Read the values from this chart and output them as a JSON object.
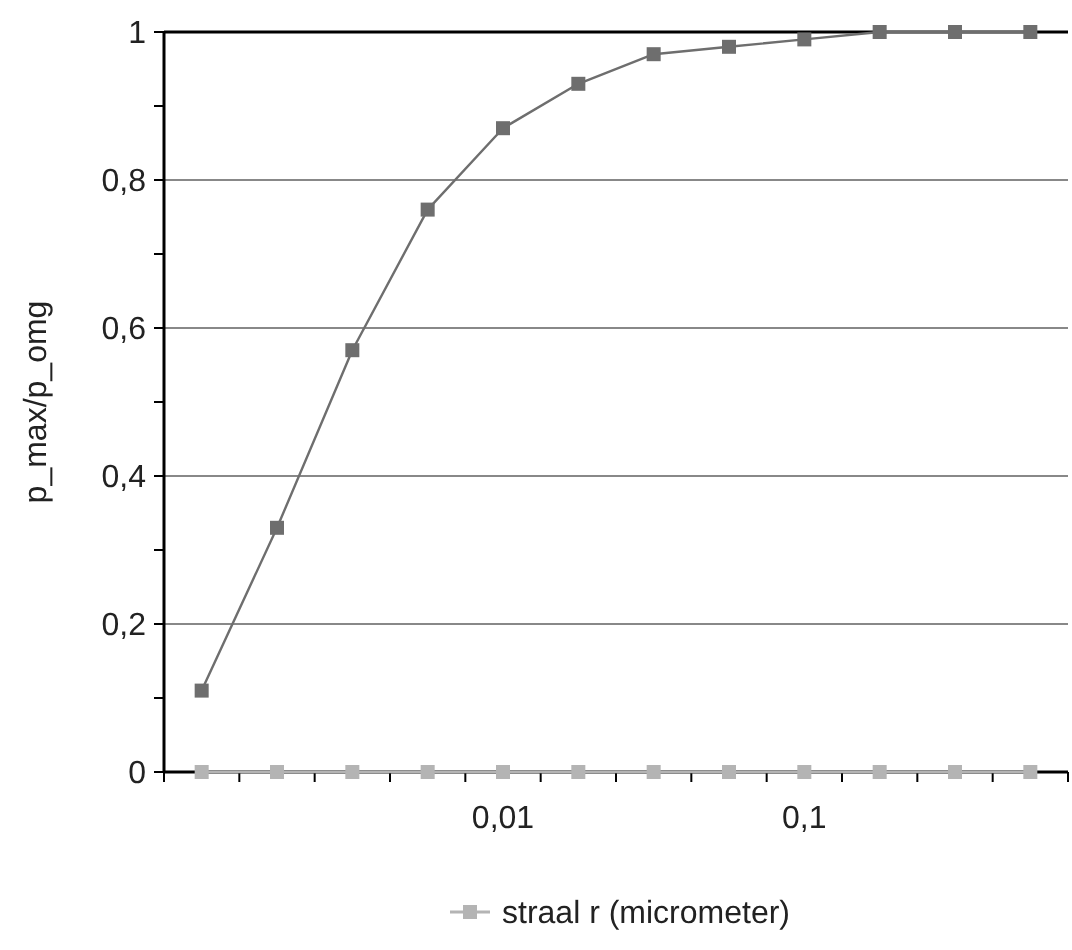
{
  "chart_data": {
    "type": "line",
    "ylabel": "p_max/p_omg",
    "categories": [
      null,
      null,
      null,
      null,
      "0,01",
      null,
      null,
      null,
      "0,1",
      null,
      null,
      null
    ],
    "series": [
      {
        "color": "#6e6e6e",
        "values": [
          0.11,
          0.33,
          0.57,
          0.76,
          0.87,
          0.93,
          0.97,
          0.98,
          0.99,
          1,
          1,
          1
        ]
      },
      {
        "name": "straal r (micrometer)",
        "color": "#b4b4b4",
        "values": [
          0,
          0,
          0,
          0,
          0,
          0,
          0,
          0,
          0,
          0,
          0,
          0
        ]
      }
    ],
    "ylim": [
      0,
      1
    ],
    "yticks": [
      0,
      {
        "value": 0.1,
        "label": null
      },
      {
        "value": 0.2,
        "label": "0,2"
      },
      {
        "value": 0.3,
        "label": null
      },
      {
        "value": 0.4,
        "label": "0,4"
      },
      {
        "value": 0.5,
        "label": null
      },
      {
        "value": 0.6,
        "label": "0,6"
      },
      {
        "value": 0.7,
        "label": null
      },
      {
        "value": 0.8,
        "label": "0,8"
      },
      {
        "value": 0.9,
        "label": null
      },
      1
    ],
    "grid": "y",
    "legend": "bottom",
    "marker": "square",
    "line_style": "solid"
  }
}
